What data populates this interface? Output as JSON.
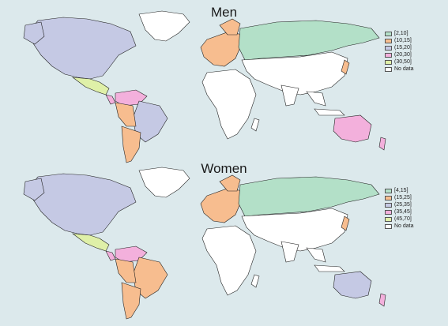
{
  "maps": [
    {
      "title": "Men",
      "legend": [
        {
          "label": "[2,10]",
          "color": "#b3e0c8"
        },
        {
          "label": "(10,15]",
          "color": "#f7bd8f"
        },
        {
          "label": "(15,20]",
          "color": "#c5c9e4"
        },
        {
          "label": "(20,30]",
          "color": "#f3b0dc"
        },
        {
          "label": "(30,50]",
          "color": "#dff0a8"
        },
        {
          "label": "No data",
          "color": "#ffffff"
        }
      ],
      "region_classes": {
        "north_america": "(15,20]",
        "greenland": "No data",
        "mexico": "(30,50]",
        "central_america": "(20,30]",
        "south_america_north": "(20,30]",
        "brazil": "(15,20]",
        "peru_bolivia": "(10,15]",
        "argentina_chile": "(10,15]",
        "russia": "[2,10]",
        "europe": "(10,15]",
        "australia": "(20,30]",
        "new_zealand": "(20,30]",
        "japan": "(10,15]",
        "africa": "No data",
        "asia": "No data"
      }
    },
    {
      "title": "Women",
      "legend": [
        {
          "label": "[4,15]",
          "color": "#b3e0c8"
        },
        {
          "label": "(15,25]",
          "color": "#f7bd8f"
        },
        {
          "label": "(25,35]",
          "color": "#c5c9e4"
        },
        {
          "label": "(35,45]",
          "color": "#f3b0dc"
        },
        {
          "label": "(45,70]",
          "color": "#dff0a8"
        },
        {
          "label": "No data",
          "color": "#ffffff"
        }
      ],
      "region_classes": {
        "north_america": "(25,35]",
        "greenland": "No data",
        "mexico": "(45,70]",
        "central_america": "(35,45]",
        "south_america_north": "(35,45]",
        "brazil": "(15,25]",
        "peru_bolivia": "(15,25]",
        "argentina_chile": "(15,25]",
        "russia": "[4,15]",
        "europe": "(15,25]",
        "australia": "(25,35]",
        "new_zealand": "(35,45]",
        "japan": "(15,25]",
        "africa": "No data",
        "asia": "No data"
      }
    }
  ]
}
